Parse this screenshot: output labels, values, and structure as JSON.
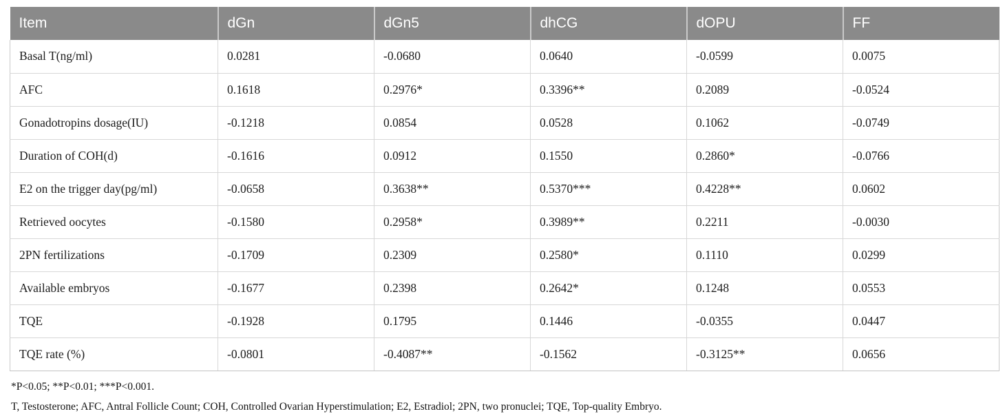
{
  "table": {
    "columns": [
      "Item",
      "dGn",
      "dGn5",
      "dhCG",
      "dOPU",
      "FF"
    ],
    "rows": [
      {
        "item": "Basal T(ng/ml)",
        "values": [
          "0.0281",
          "-0.0680",
          "0.0640",
          "-0.0599",
          "0.0075"
        ]
      },
      {
        "item": "AFC",
        "values": [
          "0.1618",
          "0.2976*",
          "0.3396**",
          "0.2089",
          "-0.0524"
        ]
      },
      {
        "item": "Gonadotropins dosage(IU)",
        "values": [
          "-0.1218",
          "0.0854",
          "0.0528",
          "0.1062",
          "-0.0749"
        ]
      },
      {
        "item": "Duration of COH(d)",
        "values": [
          "-0.1616",
          "0.0912",
          "0.1550",
          "0.2860*",
          "-0.0766"
        ]
      },
      {
        "item": "E2 on the trigger day(pg/ml)",
        "values": [
          "-0.0658",
          "0.3638**",
          "0.5370***",
          "0.4228**",
          "0.0602"
        ]
      },
      {
        "item": "Retrieved oocytes",
        "values": [
          "-0.1580",
          "0.2958*",
          "0.3989**",
          "0.2211",
          "-0.0030"
        ]
      },
      {
        "item": "2PN fertilizations",
        "values": [
          "-0.1709",
          "0.2309",
          "0.2580*",
          "0.1110",
          "0.0299"
        ]
      },
      {
        "item": "Available embryos",
        "values": [
          "-0.1677",
          "0.2398",
          "0.2642*",
          "0.1248",
          "0.0553"
        ]
      },
      {
        "item": "TQE",
        "values": [
          "-0.1928",
          "0.1795",
          "0.1446",
          "-0.0355",
          "0.0447"
        ]
      },
      {
        "item": "TQE rate (%)",
        "values": [
          "-0.0801",
          "-0.4087**",
          "-0.1562",
          "-0.3125**",
          "0.0656"
        ]
      }
    ]
  },
  "footnotes": [
    "*P<0.05; **P<0.01; ***P<0.001.",
    "T, Testosterone; AFC, Antral Follicle Count; COH, Controlled Ovarian Hyperstimulation; E2, Estradiol; 2PN, two pronuclei; TQE, Top-quality Embryo."
  ],
  "colors": {
    "header_bg": "#8a8a8a",
    "header_text": "#ffffff",
    "body_text": "#1c1c1c",
    "grid_line": "#d7d7d7"
  }
}
